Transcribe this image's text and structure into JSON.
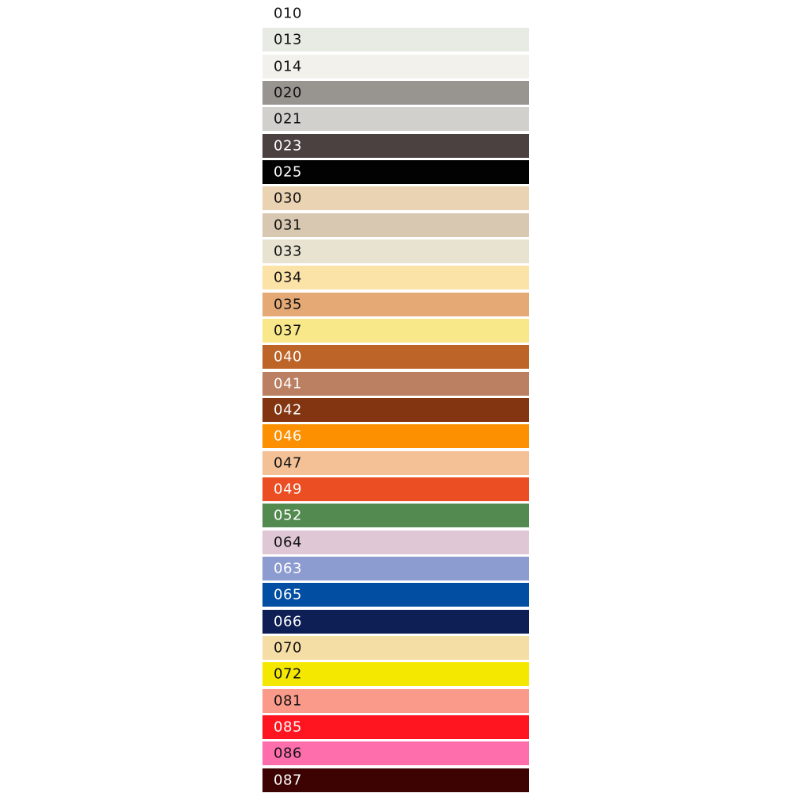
{
  "swatches": [
    {
      "code": "010",
      "color": "#ffffff",
      "text": "#111111"
    },
    {
      "code": "013",
      "color": "#e8ebe3",
      "text": "#111111"
    },
    {
      "code": "014",
      "color": "#f2f1ec",
      "text": "#111111"
    },
    {
      "code": "020",
      "color": "#989590",
      "text": "#111111"
    },
    {
      "code": "021",
      "color": "#d2d0cd",
      "text": "#111111"
    },
    {
      "code": "023",
      "color": "#4a4140",
      "text": "#ffffff"
    },
    {
      "code": "025",
      "color": "#020202",
      "text": "#ffffff"
    },
    {
      "code": "030",
      "color": "#ead3b2",
      "text": "#111111"
    },
    {
      "code": "031",
      "color": "#d8c7b1",
      "text": "#111111"
    },
    {
      "code": "033",
      "color": "#e8e3d0",
      "text": "#111111"
    },
    {
      "code": "034",
      "color": "#fbe3a8",
      "text": "#111111"
    },
    {
      "code": "035",
      "color": "#e5a976",
      "text": "#111111"
    },
    {
      "code": "037",
      "color": "#f8e88a",
      "text": "#111111"
    },
    {
      "code": "040",
      "color": "#bd6428",
      "text": "#ffffff"
    },
    {
      "code": "041",
      "color": "#bb7f62",
      "text": "#ffffff"
    },
    {
      "code": "042",
      "color": "#823510",
      "text": "#ffffff"
    },
    {
      "code": "046",
      "color": "#fd9000",
      "text": "#ffffff"
    },
    {
      "code": "047",
      "color": "#f4c196",
      "text": "#111111"
    },
    {
      "code": "049",
      "color": "#ea4e22",
      "text": "#ffffff"
    },
    {
      "code": "052",
      "color": "#538a4f",
      "text": "#ffffff"
    },
    {
      "code": "064",
      "color": "#dfc7d6",
      "text": "#111111"
    },
    {
      "code": "063",
      "color": "#8d9cd0",
      "text": "#ffffff"
    },
    {
      "code": "065",
      "color": "#024ea3",
      "text": "#ffffff"
    },
    {
      "code": "066",
      "color": "#0e1f55",
      "text": "#ffffff"
    },
    {
      "code": "070",
      "color": "#f5dea5",
      "text": "#111111"
    },
    {
      "code": "072",
      "color": "#f4e800",
      "text": "#111111"
    },
    {
      "code": "081",
      "color": "#f99a8a",
      "text": "#111111"
    },
    {
      "code": "085",
      "color": "#fe1520",
      "text": "#ffffff"
    },
    {
      "code": "086",
      "color": "#fe6ead",
      "text": "#111111"
    },
    {
      "code": "087",
      "color": "#3d0303",
      "text": "#ffffff"
    }
  ]
}
